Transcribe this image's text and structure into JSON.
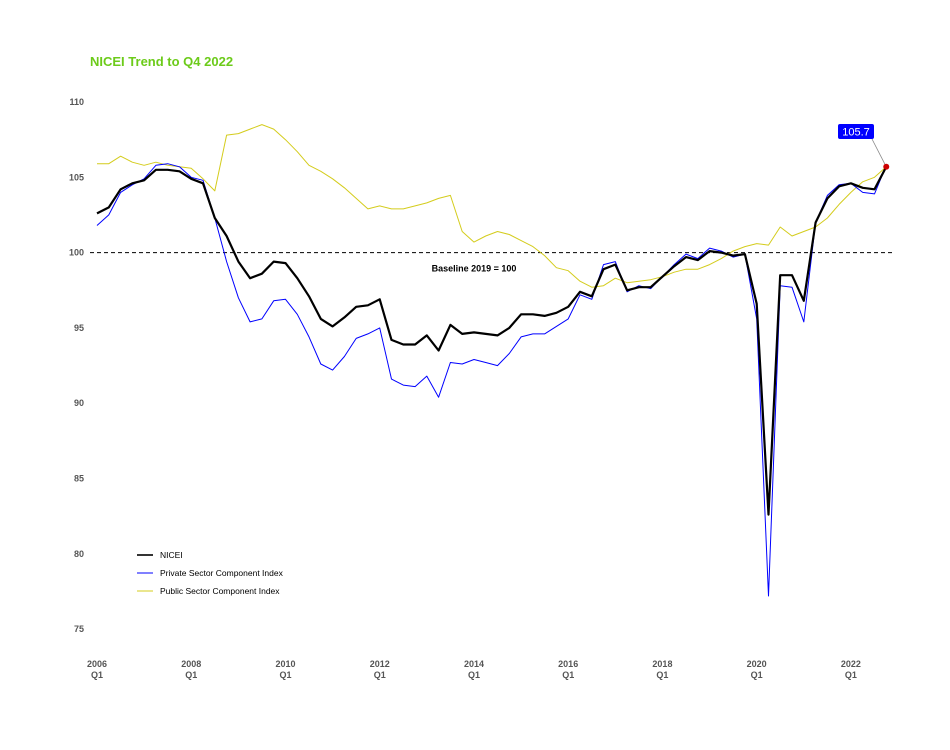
{
  "title": "NICEI Trend to Q4 2022",
  "colors": {
    "title": "#6ccb1a",
    "nicei": "#000000",
    "private": "#0000ff",
    "public": "#d4cc1c",
    "marker": "#cc0000",
    "callout_bg": "#0000ff"
  },
  "chart_data": {
    "type": "line",
    "title": "NICEI Trend to Q4 2022",
    "x": [
      "2006 Q1",
      "2006 Q2",
      "2006 Q3",
      "2006 Q4",
      "2007 Q1",
      "2007 Q2",
      "2007 Q3",
      "2007 Q4",
      "2008 Q1",
      "2008 Q2",
      "2008 Q3",
      "2008 Q4",
      "2009 Q1",
      "2009 Q2",
      "2009 Q3",
      "2009 Q4",
      "2010 Q1",
      "2010 Q2",
      "2010 Q3",
      "2010 Q4",
      "2011 Q1",
      "2011 Q2",
      "2011 Q3",
      "2011 Q4",
      "2012 Q1",
      "2012 Q2",
      "2012 Q3",
      "2012 Q4",
      "2013 Q1",
      "2013 Q2",
      "2013 Q3",
      "2013 Q4",
      "2014 Q1",
      "2014 Q2",
      "2014 Q3",
      "2014 Q4",
      "2015 Q1",
      "2015 Q2",
      "2015 Q3",
      "2015 Q4",
      "2016 Q1",
      "2016 Q2",
      "2016 Q3",
      "2016 Q4",
      "2017 Q1",
      "2017 Q2",
      "2017 Q3",
      "2017 Q4",
      "2018 Q1",
      "2018 Q2",
      "2018 Q3",
      "2018 Q4",
      "2019 Q1",
      "2019 Q2",
      "2019 Q3",
      "2019 Q4",
      "2020 Q1",
      "2020 Q2",
      "2020 Q3",
      "2020 Q4",
      "2021 Q1",
      "2021 Q2",
      "2021 Q3",
      "2021 Q4",
      "2022 Q1",
      "2022 Q2",
      "2022 Q3",
      "2022 Q4"
    ],
    "series": [
      {
        "name": "NICEI",
        "color": "#000000",
        "values": [
          102.6,
          103.0,
          104.2,
          104.6,
          104.8,
          105.5,
          105.5,
          105.4,
          104.9,
          104.6,
          102.3,
          101.1,
          99.4,
          98.3,
          98.6,
          99.4,
          99.3,
          98.3,
          97.1,
          95.6,
          95.1,
          95.7,
          96.4,
          96.5,
          96.9,
          94.2,
          93.9,
          93.9,
          94.5,
          93.5,
          95.2,
          94.6,
          94.7,
          94.6,
          94.5,
          95.0,
          95.9,
          95.9,
          95.8,
          96.0,
          96.4,
          97.4,
          97.1,
          98.9,
          99.2,
          97.5,
          97.7,
          97.7,
          98.4,
          99.1,
          99.7,
          99.5,
          100.1,
          100.0,
          99.8,
          99.9,
          96.6,
          82.6,
          98.5,
          98.5,
          96.8,
          102.0,
          103.6,
          104.4,
          104.6,
          104.3,
          104.2,
          105.7
        ]
      },
      {
        "name": "Private Sector Component Index",
        "color": "#0000ff",
        "values": [
          101.8,
          102.5,
          104.0,
          104.5,
          104.9,
          105.8,
          105.9,
          105.7,
          105.0,
          104.8,
          102.3,
          99.4,
          97.0,
          95.4,
          95.6,
          96.8,
          96.9,
          95.9,
          94.4,
          92.6,
          92.2,
          93.1,
          94.3,
          94.6,
          95.0,
          91.6,
          91.2,
          91.1,
          91.8,
          90.4,
          92.7,
          92.6,
          92.9,
          92.7,
          92.5,
          93.3,
          94.4,
          94.6,
          94.6,
          95.1,
          95.6,
          97.2,
          96.9,
          99.2,
          99.4,
          97.4,
          97.8,
          97.6,
          98.4,
          99.2,
          99.9,
          99.6,
          100.3,
          100.1,
          99.7,
          99.9,
          95.6,
          77.2,
          97.8,
          97.7,
          95.4,
          102.0,
          103.8,
          104.5,
          104.6,
          104.0,
          103.9,
          105.8
        ]
      },
      {
        "name": "Public Sector Component Index",
        "color": "#d4cc1c",
        "values": [
          105.9,
          105.9,
          106.4,
          106.0,
          105.8,
          106.0,
          105.8,
          105.7,
          105.6,
          104.9,
          104.1,
          107.8,
          107.9,
          108.2,
          108.5,
          108.2,
          107.5,
          106.7,
          105.8,
          105.4,
          104.9,
          104.3,
          103.6,
          102.9,
          103.1,
          102.9,
          102.9,
          103.1,
          103.3,
          103.6,
          103.8,
          101.4,
          100.7,
          101.1,
          101.4,
          101.2,
          100.8,
          100.4,
          99.8,
          99.0,
          98.8,
          98.1,
          97.7,
          97.8,
          98.3,
          98.0,
          98.1,
          98.2,
          98.4,
          98.7,
          98.9,
          98.9,
          99.2,
          99.6,
          100.1,
          100.4,
          100.6,
          100.5,
          101.7,
          101.1,
          101.4,
          101.7,
          102.3,
          103.2,
          104.0,
          104.7,
          105.0,
          105.7
        ]
      }
    ],
    "ylim": [
      75,
      110
    ],
    "yticks": [
      75,
      80,
      85,
      90,
      95,
      100,
      105,
      110
    ],
    "xticks": [
      {
        "year": "2006",
        "q": "Q1"
      },
      {
        "year": "2008",
        "q": "Q1"
      },
      {
        "year": "2010",
        "q": "Q1"
      },
      {
        "year": "2012",
        "q": "Q1"
      },
      {
        "year": "2014",
        "q": "Q1"
      },
      {
        "year": "2016",
        "q": "Q1"
      },
      {
        "year": "2018",
        "q": "Q1"
      },
      {
        "year": "2020",
        "q": "Q1"
      },
      {
        "year": "2022",
        "q": "Q1"
      }
    ],
    "baseline": {
      "value": 100,
      "label": "Baseline 2019 = 100"
    },
    "annotation": {
      "label": "105.7",
      "value": 105.7,
      "x": "2022 Q4"
    },
    "legend_position": "bottom-left",
    "grid": false
  }
}
